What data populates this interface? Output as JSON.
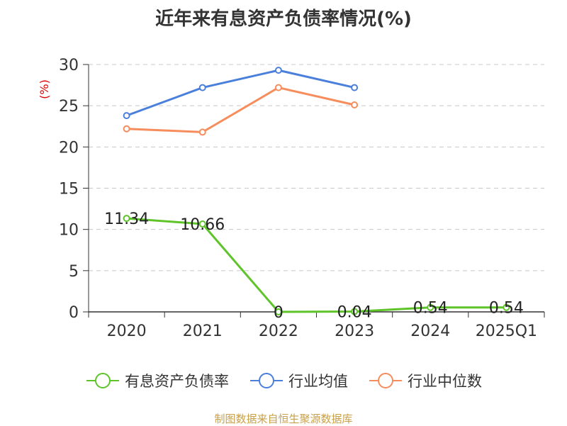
{
  "chart_data": {
    "type": "line",
    "title": "近年来有息资产负债率情况(%)",
    "ylabel": "(%)",
    "xlabel": "",
    "categories": [
      "2020",
      "2021",
      "2022",
      "2023",
      "2024",
      "2025Q1"
    ],
    "ylim": [
      0,
      30
    ],
    "yticks": [
      0,
      5,
      10,
      15,
      20,
      25,
      30
    ],
    "grid": true,
    "legend_position": "bottom",
    "series": [
      {
        "name": "有息资产负债率",
        "color": "#5ec42a",
        "values": [
          11.34,
          10.66,
          0,
          0.04,
          0.54,
          0.54
        ],
        "labels": [
          "11.34",
          "10.66",
          "0",
          "0.04",
          "0.54",
          "0.54"
        ]
      },
      {
        "name": "行业均值",
        "color": "#4a7fdb",
        "values": [
          23.8,
          27.2,
          29.3,
          27.2,
          null,
          null
        ]
      },
      {
        "name": "行业中位数",
        "color": "#f78d5c",
        "values": [
          22.2,
          21.8,
          27.2,
          25.1,
          null,
          null
        ]
      }
    ],
    "source": "制图数据来自恒生聚源数据库"
  }
}
